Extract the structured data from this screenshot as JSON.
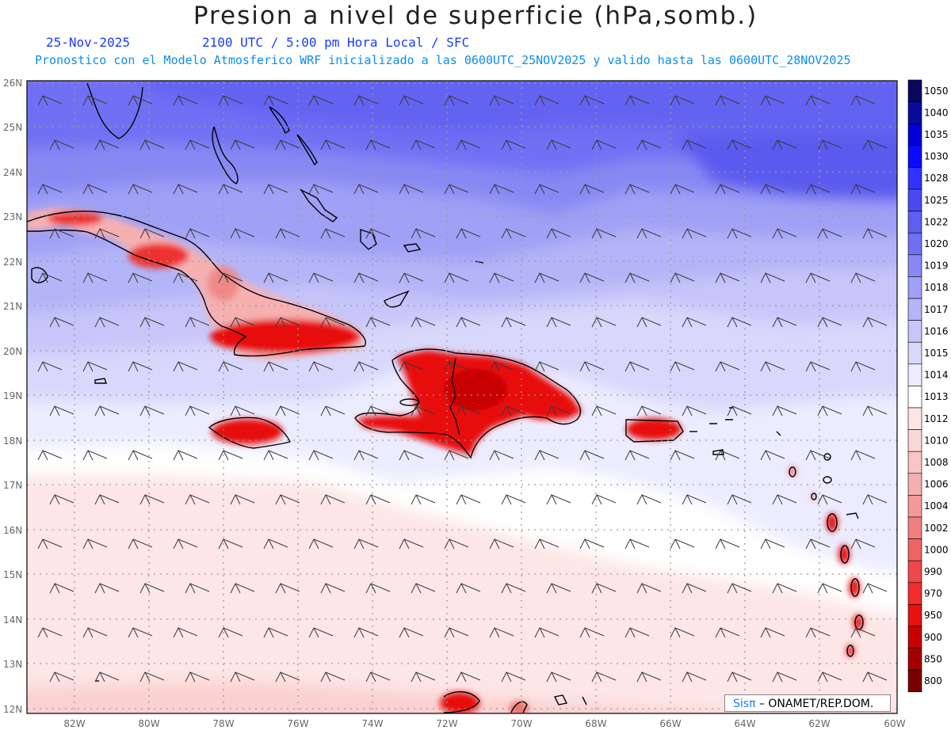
{
  "header": {
    "title": "Presion a nivel de superficie (hPa,somb.)",
    "date": "25-Nov-2025",
    "time": "2100 UTC / 5:00 pm Hora Local / SFC",
    "forecast_line": "Pronostico con el Modelo Atmosferico WRF inicializado a las 0600UTC_25NOV2025 y valido hasta las  0600UTC_28NOV2025"
  },
  "map": {
    "lat_labels": [
      "26N",
      "25N",
      "24N",
      "23N",
      "22N",
      "21N",
      "20N",
      "19N",
      "18N",
      "17N",
      "16N",
      "15N",
      "14N",
      "13N",
      "12N"
    ],
    "lon_labels": [
      "82W",
      "80W",
      "78W",
      "76W",
      "74W",
      "72W",
      "70W",
      "68W",
      "66W",
      "64W",
      "62W",
      "60W"
    ],
    "lat_range": [
      12,
      26
    ],
    "lon_range": [
      -83.2,
      -60
    ],
    "islands": [
      "Cuba",
      "Jamaica",
      "Hispaniola",
      "Puerto Rico",
      "Lesser Antilles",
      "Bahamas"
    ]
  },
  "colorbar": {
    "levels": [
      "1050",
      "1040",
      "1035",
      "1030",
      "1028",
      "1025",
      "1022",
      "1020",
      "1019",
      "1018",
      "1017",
      "1016",
      "1015",
      "1014",
      "1013",
      "1012",
      "1010",
      "1008",
      "1006",
      "1004",
      "1002",
      "1000",
      "990",
      "970",
      "950",
      "900",
      "850",
      "800"
    ],
    "colors": [
      "#08085c",
      "#0a0a9a",
      "#0000d6",
      "#0a0aff",
      "#3232ff",
      "#4a4af2",
      "#5e5ef0",
      "#7070f4",
      "#8888f4",
      "#a0a0f6",
      "#b4b4f8",
      "#c6c6fa",
      "#d8d8fc",
      "#ececfe",
      "#ffffff",
      "#fde6e6",
      "#fbd6d6",
      "#f8c4c4",
      "#f4b0b0",
      "#f29a9a",
      "#f08080",
      "#ee6464",
      "#ee4848",
      "#f02c2c",
      "#e81010",
      "#c80000",
      "#a40000",
      "#7a0000"
    ]
  },
  "credit": {
    "brand": "Sisπ",
    "text": " – ONAMET/REP.DOM."
  }
}
